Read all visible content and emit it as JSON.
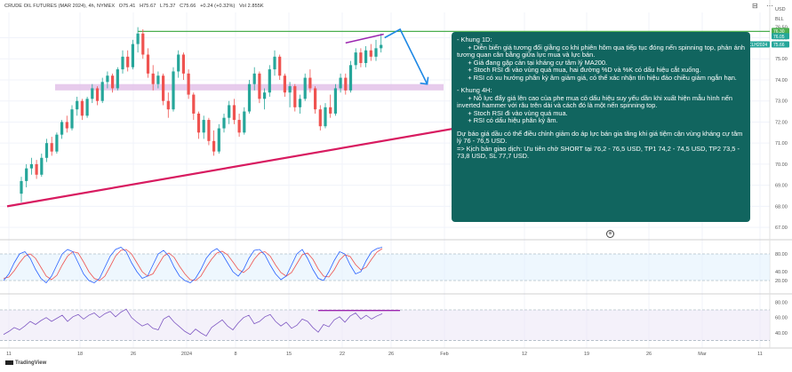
{
  "header": {
    "symbol": "CRUDE OIL FUTURES (MAR 2024), 4h, NYMEX",
    "open": "O75.41",
    "high": "H75.67",
    "low": "L75.37",
    "close": "C75.66",
    "change": "+0.24 (+0.32%)",
    "volume": "Vol 2.855K"
  },
  "currency": "USD",
  "currency_sub": "BLL",
  "colors": {
    "up": "#26a69a",
    "down": "#ef5350",
    "resistance": "#4caf50",
    "trendline": "#d81b60",
    "zone": "#e1bee7",
    "wedge": "#9c27b0",
    "arrow": "#1e88e5",
    "rsi": "#7e57c2",
    "stoch_k": "#2962ff",
    "stoch_d": "#ef5350",
    "note_bg": "#11655f"
  },
  "note": {
    "lines": [
      "- Khung 1D:",
      "      + Diễn biến giá tương đối giằng co khi phiên hôm qua tiếp tục đóng nến spinning top, phản ánh tương quan cân bằng giữa lực mua và lực bán.",
      "      + Giá đang gặp cản tại kháng cự tâm lý MA200.",
      "      + Stoch RSI đi vào vùng quá mua, hai đường %D và %K có dấu hiệu cắt xuống.",
      "      + RSI có xu hướng phân kỳ âm giảm giá, có thể xác nhận tín hiệu đảo chiều giảm ngắn hạn.",
      "",
      "- Khung 4H:",
      "      + Nỗ lực đẩy giá lên cao của phe mua có dấu hiệu suy yếu dần khi xuất hiện mẫu hình nến inverted hammer với râu trên dài và cách đó là một nến spinning top.",
      "      + Stoch RSI đi vào vùng quá mua.",
      "      + RSI có dấu hiệu phân kỳ âm.",
      "",
      "Dự báo giá dầu có thể điều chỉnh giảm do áp lực bán gia tăng khi giá tiệm cận vùng kháng cự tâm lý 76 - 76,5 USD.",
      "=> Kịch bản giao dịch: Ưu tiên chờ SHORT tại 76,2 - 76,5 USD, TP1 74,2 - 74,5 USD, TP2 73,5 - 73,8 USD, SL 77,7 USD."
    ]
  },
  "chart_data": {
    "type": "candlestick",
    "price_axis": {
      "ticks": [
        "76.50",
        "76.00",
        "75.00",
        "74.00",
        "73.00",
        "72.00",
        "71.00",
        "70.00",
        "69.00",
        "68.00",
        "67.00"
      ],
      "ylim": [
        66.5,
        77.2
      ]
    },
    "price_labels": [
      {
        "text": "76.30",
        "value": 76.3,
        "color": "#4caf50"
      },
      {
        "text": "76.05",
        "value": 76.05,
        "color": "#26a69a"
      },
      {
        "text": "CLH2024",
        "value": 75.66,
        "color": "#26a69a"
      },
      {
        "text": "75.66",
        "value": 75.66,
        "color": "#26a69a"
      }
    ],
    "x_axis": {
      "ticks": [
        "11",
        "18",
        "26",
        "2024",
        "8",
        "15",
        "22",
        "26",
        "Feb",
        "12",
        "19",
        "26",
        "Mar",
        "11"
      ]
    },
    "candles_ohlc": [
      [
        68.6,
        69.4,
        68.2,
        69.2
      ],
      [
        69.2,
        70.0,
        68.9,
        69.8
      ],
      [
        69.8,
        70.3,
        69.5,
        70.0
      ],
      [
        70.0,
        70.2,
        69.3,
        69.5
      ],
      [
        69.5,
        70.5,
        69.4,
        70.3
      ],
      [
        70.3,
        71.2,
        70.1,
        71.0
      ],
      [
        71.0,
        71.3,
        70.4,
        70.6
      ],
      [
        70.6,
        71.5,
        70.5,
        71.4
      ],
      [
        71.4,
        72.1,
        71.2,
        72.0
      ],
      [
        72.0,
        72.3,
        71.5,
        71.7
      ],
      [
        71.7,
        72.8,
        71.6,
        72.6
      ],
      [
        72.6,
        73.2,
        72.3,
        73.0
      ],
      [
        73.0,
        73.1,
        72.1,
        72.3
      ],
      [
        72.3,
        73.2,
        72.2,
        73.1
      ],
      [
        73.1,
        73.8,
        72.9,
        73.6
      ],
      [
        73.6,
        73.7,
        72.8,
        73.0
      ],
      [
        73.0,
        74.1,
        72.9,
        73.9
      ],
      [
        73.9,
        74.4,
        73.6,
        74.2
      ],
      [
        74.2,
        74.3,
        73.4,
        73.6
      ],
      [
        73.6,
        74.6,
        73.5,
        74.5
      ],
      [
        74.5,
        75.4,
        74.3,
        75.1
      ],
      [
        75.1,
        75.4,
        74.4,
        74.6
      ],
      [
        74.6,
        75.9,
        74.5,
        75.7
      ],
      [
        75.7,
        76.5,
        75.3,
        76.2
      ],
      [
        76.2,
        76.4,
        75.0,
        75.2
      ],
      [
        75.2,
        75.5,
        74.1,
        74.3
      ],
      [
        74.3,
        74.7,
        73.5,
        73.8
      ],
      [
        73.8,
        74.4,
        73.6,
        74.2
      ],
      [
        74.2,
        74.3,
        72.8,
        73.0
      ],
      [
        73.0,
        73.4,
        72.2,
        72.6
      ],
      [
        72.6,
        74.6,
        72.5,
        74.4
      ],
      [
        74.4,
        75.4,
        74.1,
        75.2
      ],
      [
        75.2,
        75.3,
        74.0,
        74.3
      ],
      [
        74.3,
        74.5,
        73.1,
        73.3
      ],
      [
        73.3,
        73.4,
        72.1,
        72.4
      ],
      [
        72.4,
        72.5,
        71.2,
        71.5
      ],
      [
        71.5,
        72.3,
        71.2,
        72.1
      ],
      [
        72.1,
        72.2,
        70.9,
        71.1
      ],
      [
        71.1,
        71.6,
        70.4,
        70.6
      ],
      [
        70.6,
        71.9,
        70.5,
        71.7
      ],
      [
        71.7,
        72.4,
        71.5,
        72.2
      ],
      [
        72.2,
        73.0,
        71.9,
        72.8
      ],
      [
        72.8,
        73.1,
        71.9,
        72.1
      ],
      [
        72.1,
        72.4,
        71.3,
        71.5
      ],
      [
        71.5,
        72.7,
        71.4,
        72.5
      ],
      [
        72.5,
        74.0,
        72.4,
        73.8
      ],
      [
        73.8,
        74.6,
        73.5,
        74.3
      ],
      [
        74.3,
        74.4,
        72.9,
        73.1
      ],
      [
        73.1,
        73.6,
        72.6,
        73.4
      ],
      [
        73.4,
        74.7,
        73.2,
        74.5
      ],
      [
        74.5,
        75.4,
        74.2,
        75.1
      ],
      [
        75.1,
        75.2,
        74.0,
        74.2
      ],
      [
        74.2,
        74.3,
        73.2,
        73.4
      ],
      [
        73.4,
        73.9,
        72.7,
        73.7
      ],
      [
        73.7,
        73.8,
        72.5,
        72.7
      ],
      [
        72.7,
        73.3,
        72.4,
        73.1
      ],
      [
        73.1,
        74.3,
        73.0,
        74.1
      ],
      [
        74.1,
        74.5,
        73.4,
        73.6
      ],
      [
        73.6,
        73.7,
        72.4,
        72.6
      ],
      [
        72.6,
        72.8,
        71.6,
        71.8
      ],
      [
        71.8,
        72.9,
        71.7,
        72.7
      ],
      [
        72.7,
        73.3,
        72.2,
        72.4
      ],
      [
        72.4,
        73.8,
        72.3,
        73.6
      ],
      [
        73.6,
        74.3,
        73.4,
        74.1
      ],
      [
        74.1,
        74.3,
        73.3,
        73.5
      ],
      [
        73.5,
        74.9,
        73.4,
        74.7
      ],
      [
        74.7,
        75.5,
        74.5,
        75.3
      ],
      [
        75.3,
        75.5,
        74.6,
        74.8
      ],
      [
        74.8,
        75.6,
        74.6,
        75.4
      ],
      [
        75.4,
        75.7,
        74.9,
        75.1
      ],
      [
        75.1,
        75.9,
        74.9,
        75.5
      ],
      [
        75.5,
        76.2,
        75.3,
        75.66
      ]
    ],
    "resistance_level": 76.3,
    "resistance_zone": [
      73.5,
      73.8
    ],
    "rising_trendline": [
      [
        0,
        68.0
      ],
      [
        72,
        72.2
      ]
    ],
    "wedge_line": [
      [
        64,
        75.5
      ],
      [
        71,
        76.0
      ]
    ],
    "forecast_path": [
      [
        71,
        76.0
      ],
      [
        73,
        76.4
      ],
      [
        78,
        73.8
      ]
    ],
    "stoch_panel": {
      "ticks": [
        "80.00",
        "40.00",
        "20.00"
      ],
      "overbought": 80,
      "oversold": 20,
      "k": [
        20,
        35,
        60,
        80,
        85,
        70,
        45,
        25,
        15,
        30,
        55,
        80,
        90,
        85,
        60,
        35,
        20,
        15,
        25,
        50,
        75,
        90,
        95,
        85,
        60,
        40,
        25,
        30,
        55,
        80,
        88,
        75,
        50,
        30,
        20,
        15,
        25,
        45,
        70,
        85,
        92,
        80,
        60,
        40,
        30,
        45,
        70,
        88,
        90,
        78,
        55,
        35,
        22,
        30,
        55,
        80,
        90,
        70,
        45,
        25,
        20,
        40,
        65,
        85,
        80,
        55,
        35,
        40,
        65,
        85,
        92,
        95
      ],
      "d": [
        25,
        28,
        42,
        60,
        75,
        80,
        70,
        50,
        30,
        22,
        32,
        55,
        75,
        85,
        82,
        62,
        40,
        25,
        20,
        30,
        52,
        75,
        88,
        90,
        80,
        60,
        40,
        30,
        35,
        55,
        75,
        82,
        72,
        52,
        35,
        22,
        20,
        30,
        50,
        68,
        82,
        86,
        78,
        62,
        45,
        38,
        48,
        68,
        82,
        85,
        75,
        55,
        38,
        30,
        38,
        58,
        78,
        82,
        68,
        46,
        30,
        28,
        44,
        66,
        78,
        74,
        56,
        44,
        50,
        68,
        84,
        92
      ]
    },
    "rsi_panel": {
      "ticks": [
        "80.00",
        "60.00",
        "40.00"
      ],
      "upper": 70,
      "lower": 30,
      "values": [
        38,
        42,
        47,
        44,
        49,
        55,
        51,
        56,
        60,
        55,
        59,
        63,
        55,
        61,
        64,
        58,
        63,
        66,
        60,
        65,
        68,
        61,
        67,
        71,
        60,
        54,
        49,
        52,
        46,
        44,
        58,
        62,
        54,
        48,
        42,
        38,
        45,
        40,
        36,
        47,
        52,
        57,
        49,
        44,
        53,
        60,
        63,
        52,
        55,
        61,
        64,
        55,
        49,
        54,
        46,
        50,
        58,
        55,
        47,
        41,
        51,
        48,
        57,
        61,
        54,
        62,
        66,
        58,
        63,
        58,
        62,
        65
      ],
      "divergence_line": [
        [
          64,
          68
        ],
        [
          71,
          68
        ]
      ]
    }
  }
}
